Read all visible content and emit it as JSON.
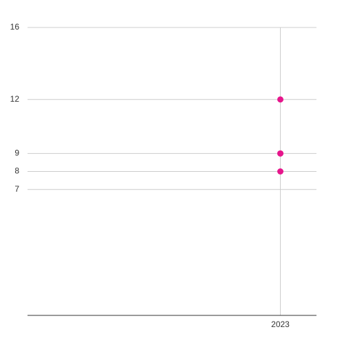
{
  "chart_data": {
    "type": "scatter",
    "x": [
      2023,
      2023,
      2023,
      2023
    ],
    "values": [
      12,
      9,
      9,
      8
    ],
    "color": "#e6168c",
    "xlim": [
      2016,
      2024
    ],
    "xticks": [
      2023
    ],
    "ylim": [
      0,
      16
    ],
    "yticks": [
      7,
      8,
      9,
      12,
      16
    ],
    "grid": true
  }
}
